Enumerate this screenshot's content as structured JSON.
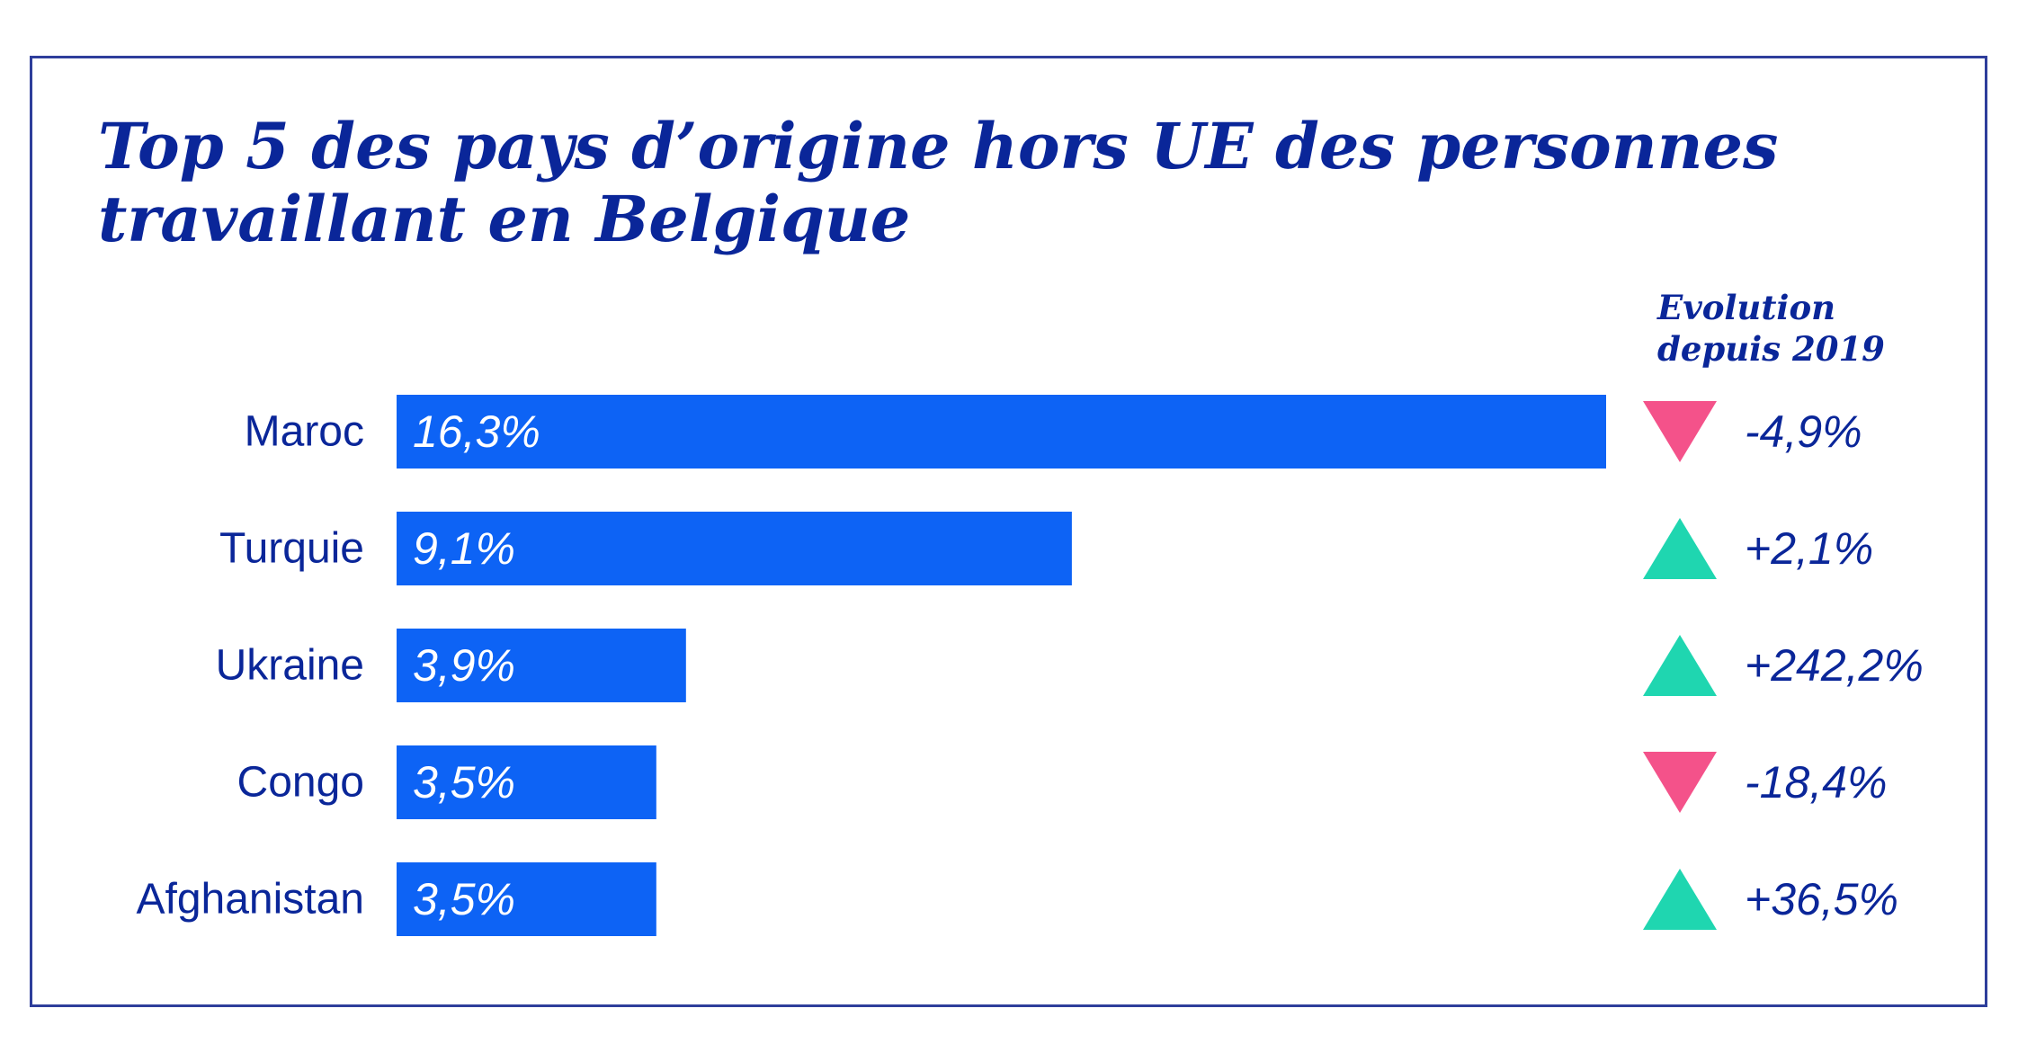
{
  "chart_data": {
    "type": "bar",
    "orientation": "horizontal",
    "title": "Top 5 des pays d’origine hors UE des personnes travaillant en Belgique",
    "evolution_header": "Evolution depuis 2019",
    "categories": [
      "Maroc",
      "Turquie",
      "Ukraine",
      "Congo",
      "Afghanistan"
    ],
    "values": [
      16.3,
      9.1,
      3.9,
      3.5,
      3.5
    ],
    "value_labels": [
      "16,3%",
      "9,1%",
      "3,9%",
      "3,5%",
      "3,5%"
    ],
    "evolution": [
      -4.9,
      2.1,
      242.2,
      -18.4,
      36.5
    ],
    "evolution_labels": [
      "-4,9%",
      "+2,1%",
      "+242,2%",
      "-18,4%",
      "+36,5%"
    ],
    "unit": "%",
    "xlim": [
      0,
      16.3
    ],
    "colors": {
      "bar": "#0d63f5",
      "text": "#0a2699",
      "frame": "#2e3e9b",
      "up": "#1fd6b0",
      "down": "#f4528a"
    }
  }
}
